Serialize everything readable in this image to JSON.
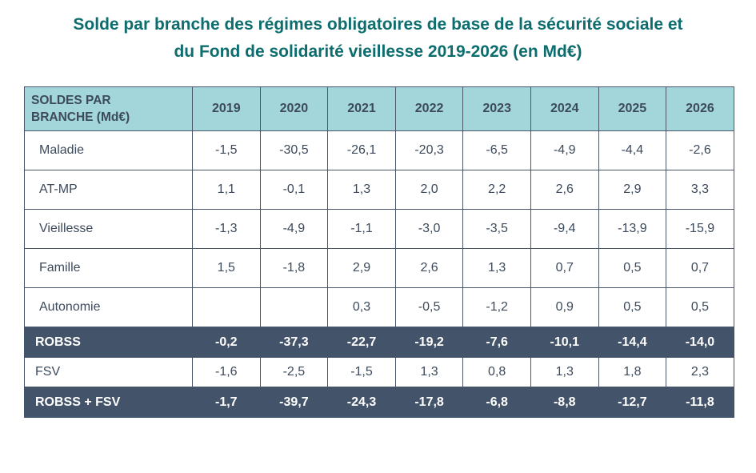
{
  "title": {
    "line1": "Solde par branche des régimes obligatoires de base de la sécurité sociale et",
    "line2": "du Fond de solidarité vieillesse 2019-2026 (en Md€)"
  },
  "table": {
    "corner_line1": "SOLDES PAR",
    "corner_line2": "BRANCHE (Md€)",
    "years": [
      "2019",
      "2020",
      "2021",
      "2022",
      "2023",
      "2024",
      "2025",
      "2026"
    ],
    "colors": {
      "header_bg": "#a3d6db",
      "total_bg": "#435369",
      "title": "#0d6d6e"
    },
    "rows": [
      {
        "label": "Maladie",
        "type": "branch",
        "values": [
          "-1,5",
          "-30,5",
          "-26,1",
          "-20,3",
          "-6,5",
          "-4,9",
          "-4,4",
          "-2,6"
        ]
      },
      {
        "label": "AT-MP",
        "type": "branch",
        "values": [
          "1,1",
          "-0,1",
          "1,3",
          "2,0",
          "2,2",
          "2,6",
          "2,9",
          "3,3"
        ]
      },
      {
        "label": "Vieillesse",
        "type": "branch",
        "values": [
          "-1,3",
          "-4,9",
          "-1,1",
          "-3,0",
          "-3,5",
          "-9,4",
          "-13,9",
          "-15,9"
        ]
      },
      {
        "label": "Famille",
        "type": "branch",
        "values": [
          "1,5",
          "-1,8",
          "2,9",
          "2,6",
          "1,3",
          "0,7",
          "0,5",
          "0,7"
        ]
      },
      {
        "label": "Autonomie",
        "type": "branch",
        "values": [
          "",
          "",
          "0,3",
          "-0,5",
          "-1,2",
          "0,9",
          "0,5",
          "0,5"
        ]
      },
      {
        "label": "ROBSS",
        "type": "total",
        "values": [
          "-0,2",
          "-37,3",
          "-22,7",
          "-19,2",
          "-7,6",
          "-10,1",
          "-14,4",
          "-14,0"
        ]
      },
      {
        "label": "FSV",
        "type": "fsv",
        "values": [
          "-1,6",
          "-2,5",
          "-1,5",
          "1,3",
          "0,8",
          "1,3",
          "1,8",
          "2,3"
        ]
      },
      {
        "label": "ROBSS + FSV",
        "type": "total",
        "values": [
          "-1,7",
          "-39,7",
          "-24,3",
          "-17,8",
          "-6,8",
          "-8,8",
          "-12,7",
          "-11,8"
        ]
      }
    ]
  }
}
